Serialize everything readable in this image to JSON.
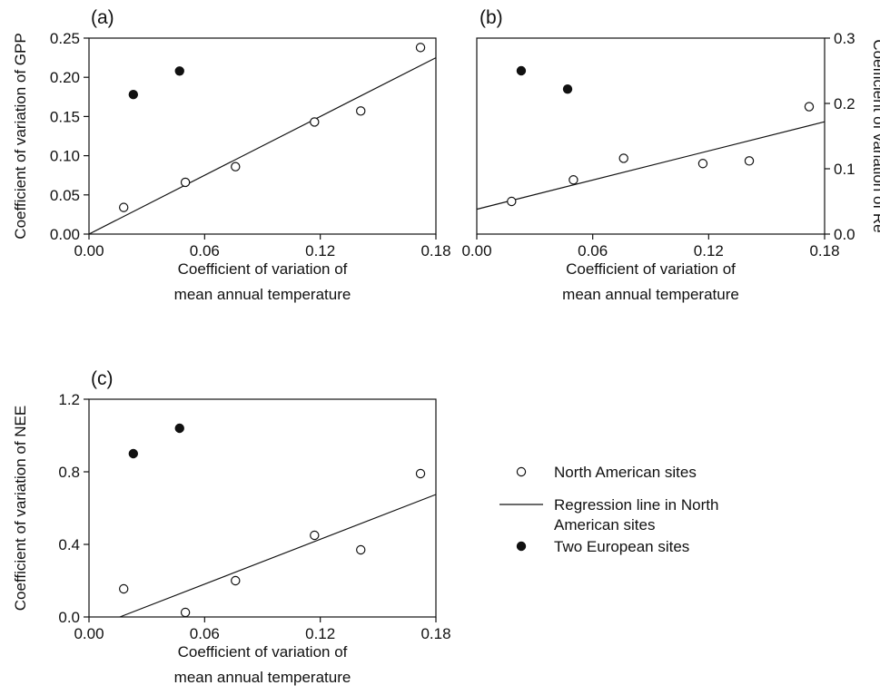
{
  "chart_data": [
    {
      "type": "scatter",
      "panel": "(a)",
      "xlabel": [
        "Coefficient of variation of",
        "mean annual temperature"
      ],
      "ylabel": "Coefficient of variation of GPP",
      "xlim": [
        0,
        0.18
      ],
      "ylim": [
        0,
        0.25
      ],
      "xticks": [
        0,
        0.06,
        0.12,
        0.18
      ],
      "xtick_labels": [
        "0.00",
        "0.06",
        "0.12",
        "0.18"
      ],
      "yticks": [
        0,
        0.05,
        0.1,
        0.15,
        0.2,
        0.25
      ],
      "ytick_labels": [
        "0.00",
        "0.05",
        "0.10",
        "0.15",
        "0.20",
        "0.25"
      ],
      "y_axis_side": "left",
      "series": [
        {
          "name": "North American sites",
          "marker": "open-circle",
          "x": [
            0.018,
            0.05,
            0.076,
            0.117,
            0.141,
            0.172
          ],
          "y": [
            0.034,
            0.066,
            0.086,
            0.143,
            0.157,
            0.238
          ]
        },
        {
          "name": "Two European sites",
          "marker": "filled-circle",
          "x": [
            0.023,
            0.047
          ],
          "y": [
            0.178,
            0.208
          ]
        },
        {
          "name": "Regression line in North American sites",
          "marker": "line",
          "x": [
            0.0,
            0.18
          ],
          "y": [
            0.0,
            0.225
          ]
        }
      ]
    },
    {
      "type": "scatter",
      "panel": "(b)",
      "xlabel": [
        "Coefficient of variation of",
        "mean annual temperature"
      ],
      "ylabel": "Coefficient of variation of Re",
      "xlim": [
        0,
        0.18
      ],
      "ylim": [
        0,
        0.3
      ],
      "xticks": [
        0,
        0.06,
        0.12,
        0.18
      ],
      "xtick_labels": [
        "0.00",
        "0.06",
        "0.12",
        "0.18"
      ],
      "yticks": [
        0,
        0.1,
        0.2,
        0.3
      ],
      "ytick_labels": [
        "0.0",
        "0.1",
        "0.2",
        "0.3"
      ],
      "y_axis_side": "right",
      "series": [
        {
          "name": "North American sites",
          "marker": "open-circle",
          "x": [
            0.018,
            0.05,
            0.076,
            0.117,
            0.141,
            0.172
          ],
          "y": [
            0.05,
            0.083,
            0.116,
            0.108,
            0.112,
            0.195
          ]
        },
        {
          "name": "Two European sites",
          "marker": "filled-circle",
          "x": [
            0.023,
            0.047
          ],
          "y": [
            0.25,
            0.222
          ]
        },
        {
          "name": "Regression line in North American sites",
          "marker": "line",
          "x": [
            0.0,
            0.18
          ],
          "y": [
            0.038,
            0.172
          ]
        }
      ]
    },
    {
      "type": "scatter",
      "panel": "(c)",
      "xlabel": [
        "Coefficient of variation of",
        "mean annual temperature"
      ],
      "ylabel": "Coefficient of variation of NEE",
      "xlim": [
        0,
        0.18
      ],
      "ylim": [
        0,
        1.2
      ],
      "xticks": [
        0,
        0.06,
        0.12,
        0.18
      ],
      "xtick_labels": [
        "0.00",
        "0.06",
        "0.12",
        "0.18"
      ],
      "yticks": [
        0,
        0.4,
        0.8,
        1.2
      ],
      "ytick_labels": [
        "0.0",
        "0.4",
        "0.8",
        "1.2"
      ],
      "y_axis_side": "left",
      "series": [
        {
          "name": "North American sites",
          "marker": "open-circle",
          "x": [
            0.018,
            0.05,
            0.076,
            0.117,
            0.141,
            0.172
          ],
          "y": [
            0.155,
            0.025,
            0.2,
            0.45,
            0.37,
            0.79
          ]
        },
        {
          "name": "Two European sites",
          "marker": "filled-circle",
          "x": [
            0.023,
            0.047
          ],
          "y": [
            0.9,
            1.04
          ]
        },
        {
          "name": "Regression line in North American sites",
          "marker": "line",
          "x": [
            0.016,
            0.18
          ],
          "y": [
            0.0,
            0.675
          ]
        }
      ]
    }
  ],
  "legend": {
    "items": [
      {
        "marker": "open-circle",
        "label": [
          "North American sites"
        ]
      },
      {
        "marker": "line",
        "label": [
          "Regression line in North",
          "American sites"
        ]
      },
      {
        "marker": "filled-circle",
        "label": [
          "Two European sites"
        ]
      }
    ]
  }
}
